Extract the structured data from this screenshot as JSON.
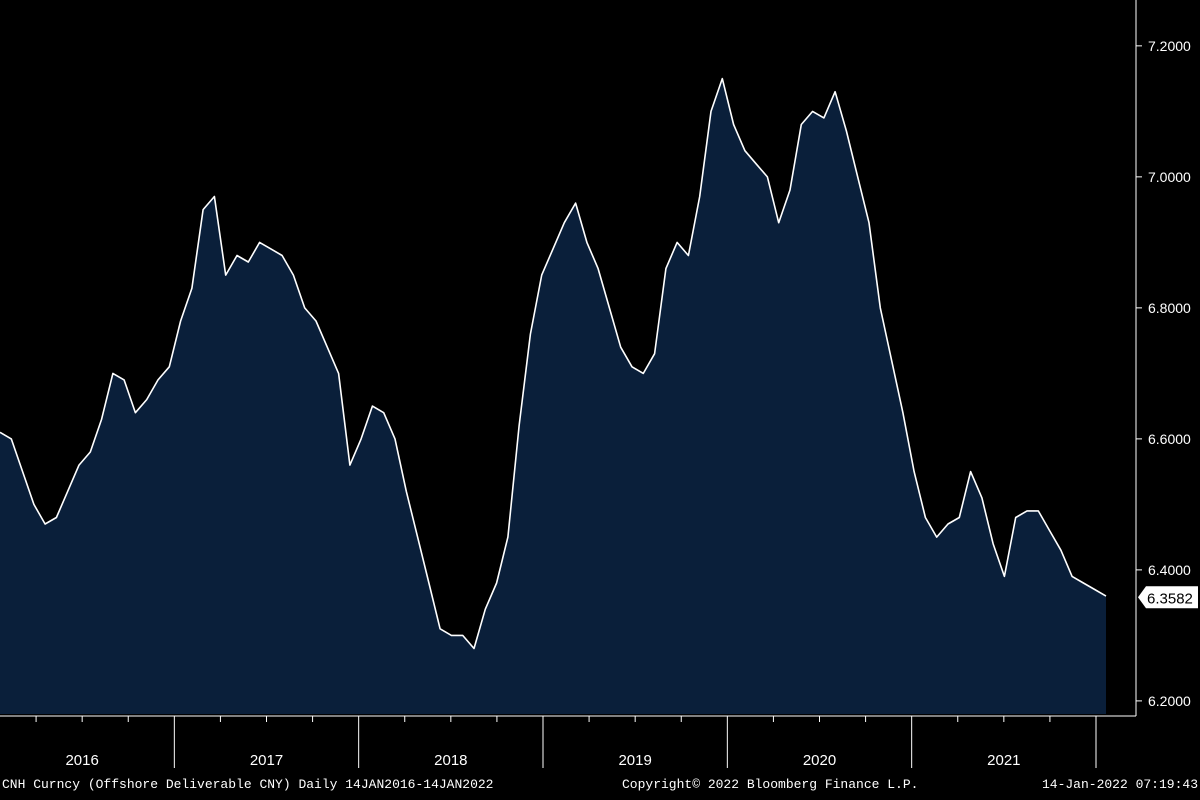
{
  "chart_data": {
    "type": "area",
    "x_labels": [
      "2016",
      "2017",
      "2018",
      "2019",
      "2020",
      "2021"
    ],
    "y_ticks": [
      "6.2000",
      "6.4000",
      "6.6000",
      "6.8000",
      "7.0000",
      "7.2000"
    ],
    "ylim": [
      6.18,
      7.27
    ],
    "last_value_label": "6.3582",
    "series": [
      {
        "values": [
          6.61,
          6.6,
          6.55,
          6.5,
          6.47,
          6.48,
          6.52,
          6.56,
          6.58,
          6.63,
          6.7,
          6.69,
          6.64,
          6.66,
          6.69,
          6.71,
          6.78,
          6.83,
          6.95,
          6.97,
          6.85,
          6.88,
          6.87,
          6.9,
          6.89,
          6.88,
          6.85,
          6.8,
          6.78,
          6.74,
          6.7,
          6.56,
          6.6,
          6.65,
          6.64,
          6.6,
          6.52,
          6.45,
          6.38,
          6.31,
          6.3,
          6.3,
          6.28,
          6.34,
          6.38,
          6.45,
          6.62,
          6.76,
          6.85,
          6.89,
          6.93,
          6.96,
          6.9,
          6.86,
          6.8,
          6.74,
          6.71,
          6.7,
          6.73,
          6.86,
          6.9,
          6.88,
          6.97,
          7.1,
          7.15,
          7.08,
          7.04,
          7.02,
          7.0,
          6.93,
          6.98,
          7.08,
          7.1,
          7.09,
          7.13,
          7.07,
          7.0,
          6.93,
          6.8,
          6.72,
          6.64,
          6.55,
          6.48,
          6.45,
          6.47,
          6.48,
          6.55,
          6.51,
          6.44,
          6.39,
          6.48,
          6.49,
          6.49,
          6.46,
          6.43,
          6.39,
          6.38,
          6.37,
          6.36
        ]
      }
    ]
  },
  "footer": {
    "left": "CNH Curncy (Offshore Deliverable CNY)  Daily 14JAN2016-14JAN2022",
    "center": "Copyright© 2022 Bloomberg Finance L.P.",
    "right": "14-Jan-2022 07:19:43"
  }
}
